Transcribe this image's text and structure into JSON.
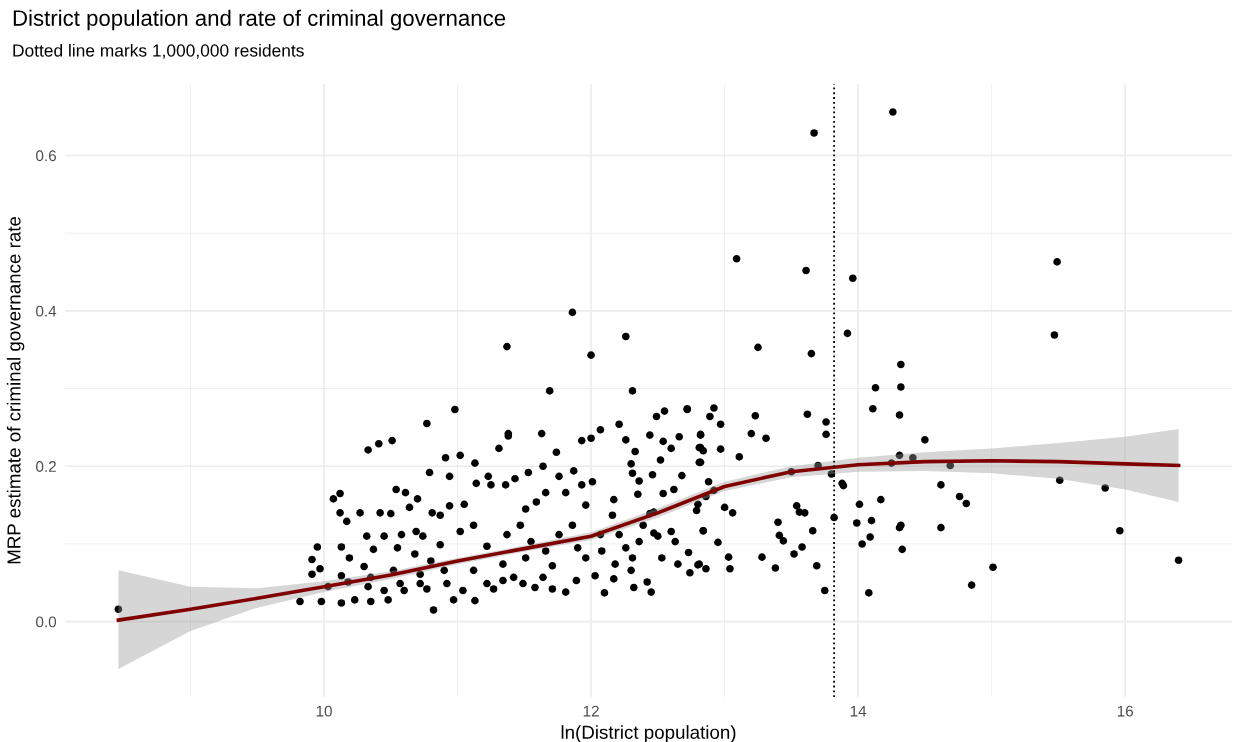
{
  "chart_data": {
    "type": "scatter",
    "title": "District population and rate of criminal governance",
    "subtitle": "Dotted line marks 1,000,000 residents",
    "xlabel": "ln(District population)",
    "ylabel": "MRP estimate of criminal governance rate",
    "xlim": [
      8.06,
      16.8
    ],
    "ylim": [
      -0.097,
      0.692
    ],
    "xticks": [
      {
        "value": 9,
        "label": null
      },
      10,
      {
        "value": 11,
        "label": null
      },
      12,
      {
        "value": 13,
        "label": null
      },
      14,
      {
        "value": 15,
        "label": null
      },
      16
    ],
    "yticks": [
      {
        "value": 0,
        "label": "0.0"
      },
      {
        "value": 0.1,
        "label": null
      },
      {
        "value": 0.2,
        "label": "0.2"
      },
      {
        "value": 0.3,
        "label": null
      },
      {
        "value": 0.4,
        "label": "0.4"
      },
      {
        "value": 0.5,
        "label": null
      },
      {
        "value": 0.6,
        "label": "0.6"
      }
    ],
    "grid": true,
    "marker": "circle",
    "ref_lines": [
      {
        "axis": "x",
        "value": 13.82,
        "color": "#000000",
        "line_style": "dotted"
      }
    ],
    "series": [
      {
        "color": "#000000",
        "x": [
          8.46,
          14.26,
          13.67,
          13.09,
          13.61,
          13.96,
          15.49,
          15.47,
          13.25,
          13.65,
          13.92,
          14.32,
          14.32,
          14.13,
          14.11,
          14.31,
          12.92,
          12.89,
          12.97,
          12.82,
          12.82,
          12.84,
          12.97,
          12.81,
          13.23,
          13.2,
          13.31,
          13.11,
          13.62,
          13.76,
          13.76,
          14.5,
          13.5,
          13.7,
          13.8,
          14.31,
          14.41,
          14.25,
          14.69,
          15.51,
          15.85,
          12.88,
          12.92,
          12.86,
          12.8,
          13.0,
          13.06,
          12.84,
          12.95,
          13.03,
          12.8,
          12.86,
          13.04,
          13.4,
          13.41,
          13.44,
          13.54,
          13.56,
          13.6,
          13.66,
          13.58,
          13.52,
          13.28,
          13.38,
          13.69,
          13.75,
          13.82,
          13.88,
          13.89,
          14.01,
          13.99,
          14.1,
          14.09,
          14.03,
          14.17,
          14.08,
          14.31,
          14.32,
          14.33,
          14.62,
          14.62,
          14.76,
          14.81,
          14.85,
          15.01,
          15.96,
          16.4,
          10.33,
          10.41,
          10.51,
          10.77,
          10.98,
          11.69,
          12.31,
          11.38,
          11.38,
          11.63,
          11.31,
          10.91,
          11.02,
          11.13,
          10.79,
          10.94,
          10.07,
          10.12,
          10.54,
          10.61,
          10.7,
          10.64,
          10.12,
          10.27,
          10.42,
          10.17,
          10.5,
          10.81,
          10.87,
          10.94,
          11.05,
          11.14,
          11.23,
          11.25,
          11.36,
          11.43,
          11.53,
          11.64,
          11.74,
          11.76,
          11.87,
          11.93,
          12.0,
          12.07,
          12.21,
          12.26,
          12.44,
          12.49,
          12.55,
          12.72,
          12.54,
          12.66,
          12.6,
          12.33,
          12.3,
          12.52,
          12.31,
          12.36,
          12.46,
          12.68,
          12.62,
          12.54,
          12.35,
          11.93,
          12.01,
          12.82,
          12.82,
          12.81,
          11.51,
          11.59,
          11.66,
          11.81,
          11.96,
          12.17,
          12.16,
          12.44,
          12.47,
          12.39,
          12.47,
          12.6,
          12.63,
          12.73,
          12.65,
          12.74,
          12.81,
          12.84,
          12.79,
          12.5,
          12.36,
          12.31,
          12.3,
          12.32,
          12.45,
          12.42,
          12.1,
          12.17,
          12.03,
          11.89,
          11.81,
          11.71,
          11.58,
          11.64,
          11.49,
          11.42,
          11.27,
          11.13,
          10.82,
          10.97,
          10.72,
          10.6,
          10.48,
          10.35,
          10.23,
          10.13,
          9.98,
          9.82,
          10.03,
          10.18,
          10.33,
          10.45,
          10.57,
          10.77,
          10.92,
          11.04,
          11.22,
          11.34,
          10.13,
          10.3,
          9.91,
          9.97,
          9.91,
          9.95,
          10.13,
          10.19,
          10.32,
          10.37,
          10.45,
          10.55,
          10.58,
          10.69,
          10.74,
          10.68,
          10.8,
          10.87,
          11.02,
          11.12,
          11.22,
          11.37,
          11.47,
          11.55,
          11.66,
          11.76,
          11.86,
          11.96,
          12.08,
          12.21,
          11.71,
          11.51,
          11.34,
          11.12,
          10.9,
          10.52,
          10.72,
          10.35,
          12.26,
          12.07,
          11.9,
          12.18,
          12.53,
          12.0,
          11.86,
          12.26,
          11.37,
          12.72
        ],
        "values": [
          0.016,
          0.656,
          0.629,
          0.467,
          0.452,
          0.442,
          0.463,
          0.369,
          0.353,
          0.345,
          0.371,
          0.331,
          0.302,
          0.301,
          0.274,
          0.266,
          0.275,
          0.264,
          0.254,
          0.241,
          0.224,
          0.22,
          0.222,
          0.205,
          0.265,
          0.242,
          0.236,
          0.212,
          0.267,
          0.257,
          0.241,
          0.234,
          0.193,
          0.201,
          0.19,
          0.214,
          0.211,
          0.204,
          0.201,
          0.182,
          0.172,
          0.18,
          0.169,
          0.161,
          0.151,
          0.147,
          0.14,
          0.117,
          0.102,
          0.083,
          0.073,
          0.068,
          0.068,
          0.128,
          0.111,
          0.104,
          0.149,
          0.141,
          0.14,
          0.117,
          0.096,
          0.087,
          0.083,
          0.069,
          0.072,
          0.04,
          0.134,
          0.178,
          0.175,
          0.151,
          0.127,
          0.13,
          0.109,
          0.1,
          0.157,
          0.037,
          0.121,
          0.124,
          0.093,
          0.176,
          0.121,
          0.161,
          0.152,
          0.047,
          0.07,
          0.117,
          0.079,
          0.221,
          0.229,
          0.233,
          0.255,
          0.273,
          0.297,
          0.297,
          0.242,
          0.239,
          0.242,
          0.223,
          0.211,
          0.214,
          0.204,
          0.192,
          0.187,
          0.158,
          0.165,
          0.17,
          0.166,
          0.158,
          0.147,
          0.14,
          0.14,
          0.14,
          0.129,
          0.139,
          0.14,
          0.137,
          0.149,
          0.151,
          0.178,
          0.187,
          0.176,
          0.176,
          0.184,
          0.192,
          0.2,
          0.218,
          0.187,
          0.194,
          0.233,
          0.236,
          0.247,
          0.254,
          0.234,
          0.24,
          0.264,
          0.271,
          0.274,
          0.232,
          0.238,
          0.223,
          0.219,
          0.203,
          0.208,
          0.191,
          0.181,
          0.189,
          0.188,
          0.17,
          0.165,
          0.164,
          0.176,
          0.18,
          0.24,
          0.205,
          0.224,
          0.145,
          0.154,
          0.166,
          0.166,
          0.15,
          0.157,
          0.137,
          0.139,
          0.141,
          0.124,
          0.114,
          0.116,
          0.103,
          0.089,
          0.074,
          0.063,
          0.074,
          0.117,
          0.143,
          0.11,
          0.103,
          0.082,
          0.066,
          0.044,
          0.038,
          0.051,
          0.037,
          0.055,
          0.059,
          0.053,
          0.038,
          0.042,
          0.044,
          0.057,
          0.049,
          0.057,
          0.042,
          0.027,
          0.015,
          0.028,
          0.049,
          0.04,
          0.028,
          0.026,
          0.028,
          0.024,
          0.026,
          0.026,
          0.045,
          0.051,
          0.045,
          0.04,
          0.049,
          0.042,
          0.049,
          0.04,
          0.049,
          0.053,
          0.059,
          0.071,
          0.061,
          0.068,
          0.08,
          0.096,
          0.096,
          0.082,
          0.11,
          0.093,
          0.11,
          0.095,
          0.112,
          0.116,
          0.11,
          0.087,
          0.078,
          0.099,
          0.116,
          0.124,
          0.097,
          0.112,
          0.124,
          0.103,
          0.091,
          0.112,
          0.124,
          0.082,
          0.091,
          0.112,
          0.072,
          0.082,
          0.074,
          0.066,
          0.066,
          0.066,
          0.061,
          0.057,
          0.095,
          0.112,
          0.095,
          0.074,
          0.082,
          0.343,
          0.398,
          0.367,
          0.354,
          0.273
        ]
      },
      {
        "type": "line",
        "color": "#800000",
        "line_style": "solid",
        "marker": "none",
        "x": [
          8.46,
          9,
          9.5,
          10,
          10.5,
          11,
          11.5,
          12,
          12.5,
          13,
          13.5,
          14,
          14.5,
          15,
          15.5,
          16,
          16.4
        ],
        "values": [
          0.002,
          0.016,
          0.03,
          0.045,
          0.06,
          0.078,
          0.094,
          0.11,
          0.14,
          0.174,
          0.193,
          0.202,
          0.206,
          0.207,
          0.206,
          0.203,
          0.201
        ],
        "lower": [
          -0.061,
          -0.012,
          0.018,
          0.038,
          0.055,
          0.074,
          0.09,
          0.105,
          0.134,
          0.168,
          0.186,
          0.193,
          0.194,
          0.191,
          0.184,
          0.17,
          0.154
        ],
        "upper": [
          0.066,
          0.045,
          0.043,
          0.052,
          0.065,
          0.082,
          0.098,
          0.115,
          0.146,
          0.18,
          0.2,
          0.211,
          0.218,
          0.223,
          0.23,
          0.238,
          0.248
        ]
      }
    ]
  }
}
